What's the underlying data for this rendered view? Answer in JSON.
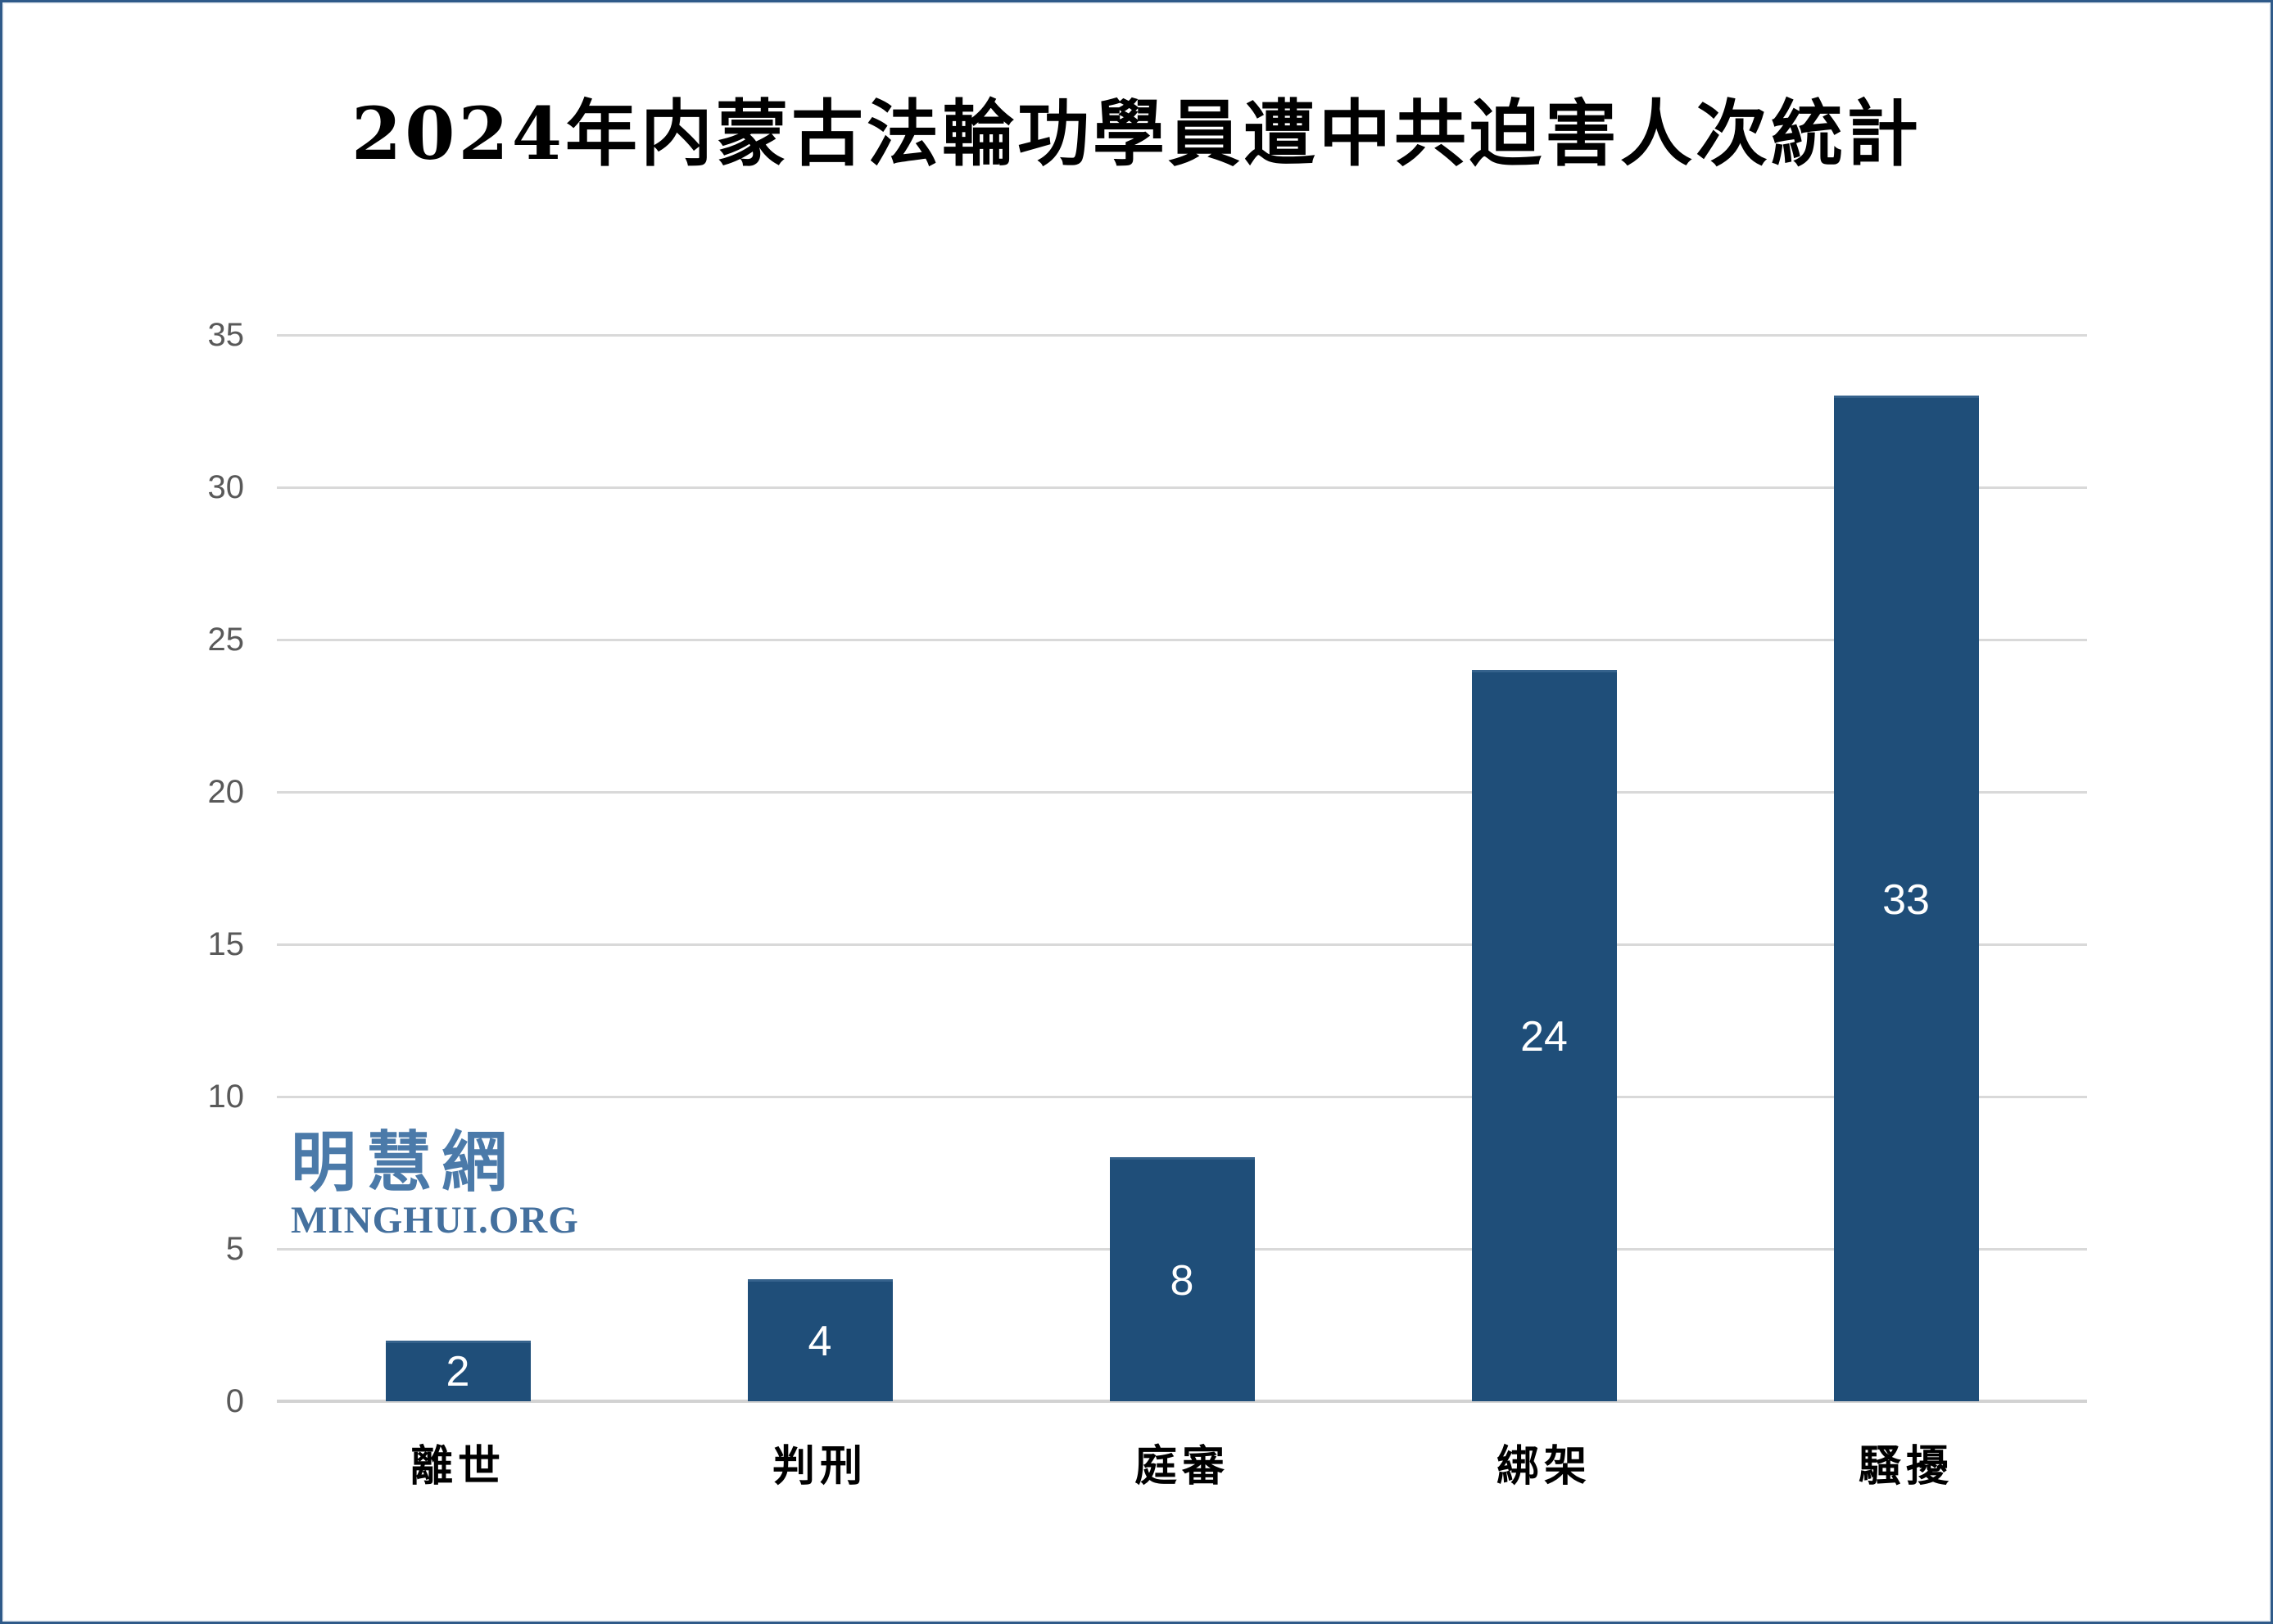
{
  "page": {
    "background": "#FFFFFF",
    "border_color": "#2F5A89"
  },
  "chart_data": {
    "type": "bar",
    "title": "2024年内蒙古法輪功學員遭中共迫害人次統計",
    "categories": [
      "離世",
      "判刑",
      "庭審",
      "綁架",
      "騷擾"
    ],
    "values": [
      2,
      4,
      8,
      24,
      33
    ],
    "data_labels": [
      "2",
      "4",
      "8",
      "24",
      "33"
    ],
    "data_label_position": "inside-center",
    "data_label_color": "#FFFFFF",
    "bar_color": "#1F4E79",
    "bar_top_edge_color": "#35628C",
    "xlabel": "",
    "ylabel": "",
    "ylim": [
      0,
      35
    ],
    "yticks": [
      0,
      5,
      10,
      15,
      20,
      25,
      30,
      35
    ],
    "grid": "horizontal",
    "gridline_color": "#D9D9D9",
    "axis_line_color": "#D2D2D2",
    "tick_label_color": "#595959",
    "legend": "none"
  },
  "watermark": {
    "cjk": "明慧網",
    "latin": "MINGHUI.ORG",
    "cjk_color": "#4B7AA9",
    "latin_color": "#44709E"
  }
}
